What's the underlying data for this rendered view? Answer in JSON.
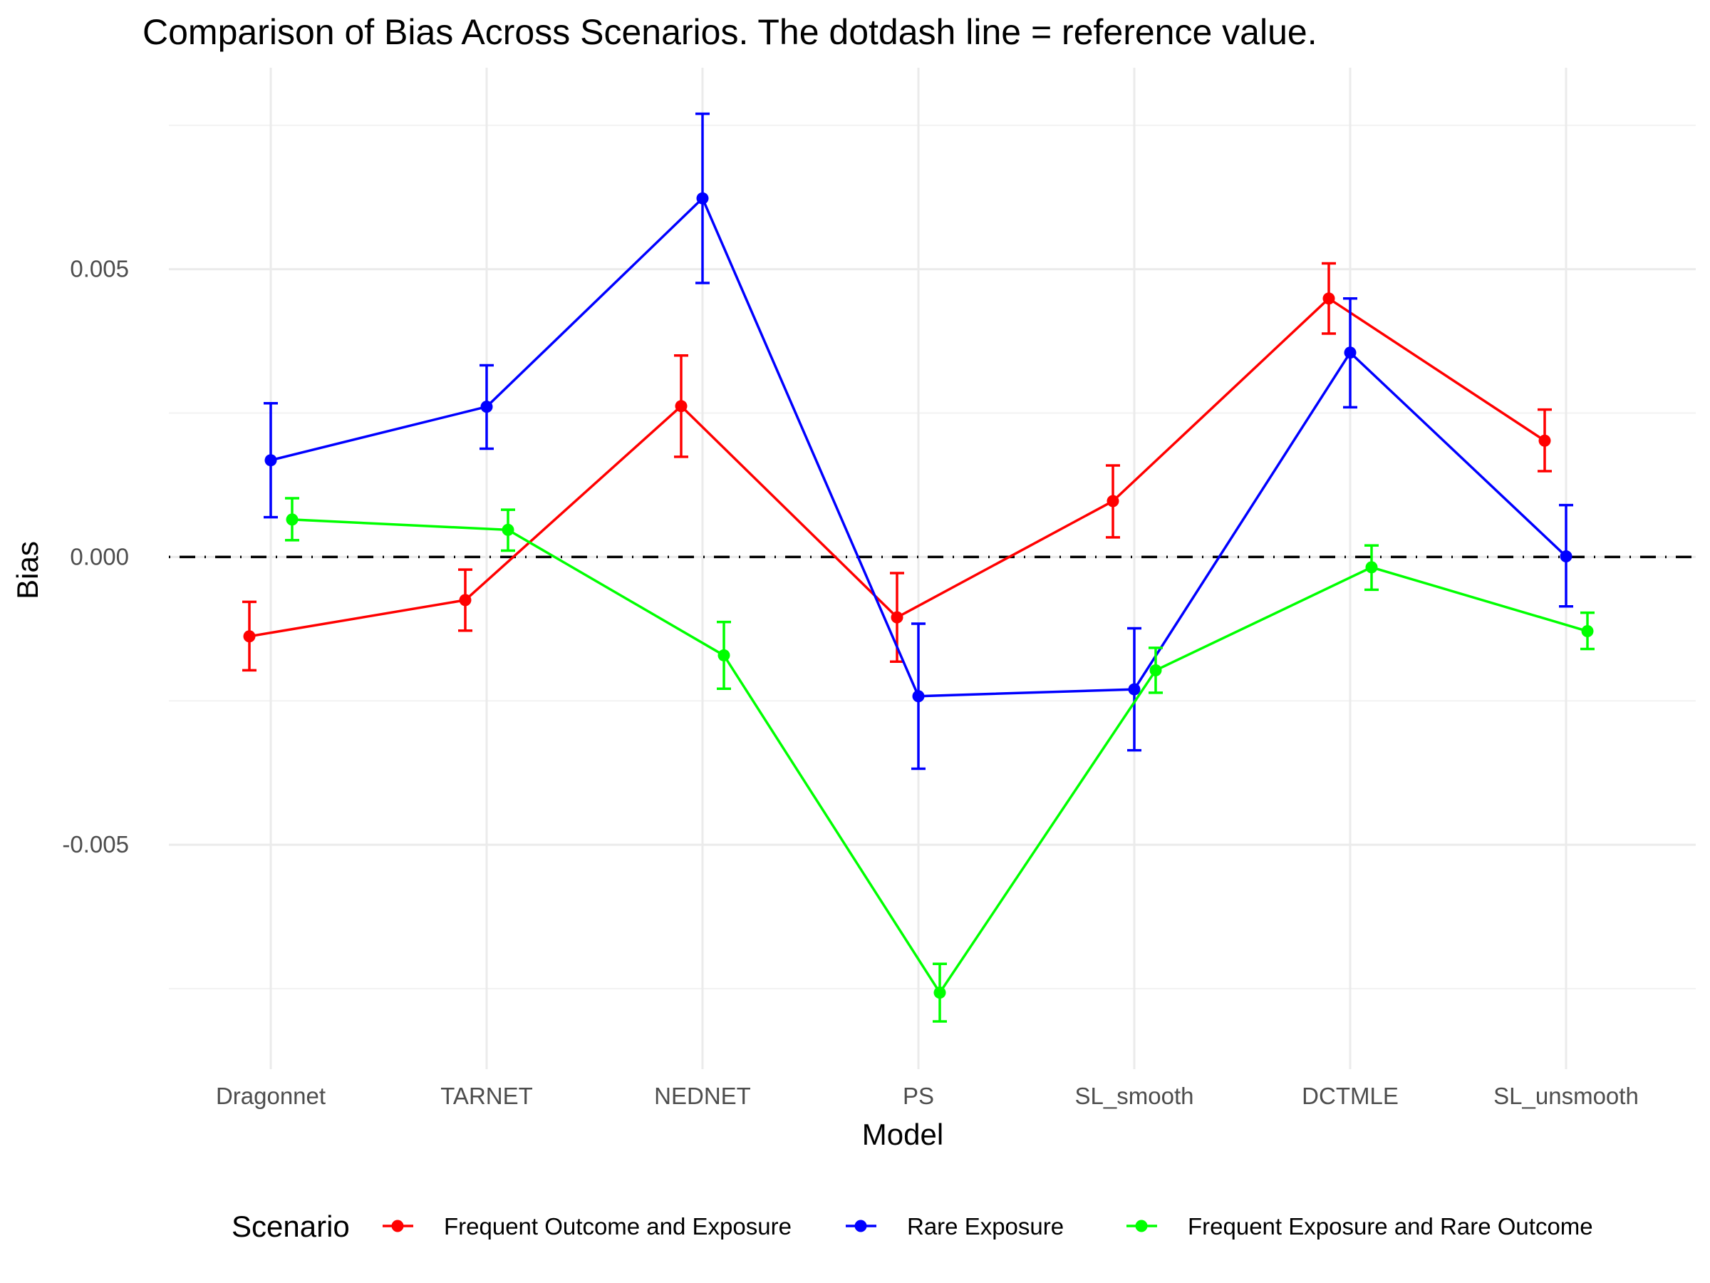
{
  "chart_data": {
    "type": "line",
    "title": "Comparison of Bias Across Scenarios. The dotdash line = reference value.",
    "xlabel": "Model",
    "ylabel": "Bias",
    "categories": [
      "Dragonnet",
      "TARNET",
      "NEDNET",
      "PS",
      "SL_smooth",
      "DCTMLE",
      "SL_unsmooth"
    ],
    "ylim": [
      -0.0089,
      0.0085
    ],
    "y_ticks": [
      -0.005,
      0.0,
      0.005
    ],
    "y_tick_labels": [
      "-0.005",
      "0.000",
      "0.005"
    ],
    "reference_line": {
      "value": 0.0,
      "style": "dotdash"
    },
    "grid": true,
    "legend": {
      "title": "Scenario",
      "position": "bottom"
    },
    "series": [
      {
        "name": "Frequent Outcome and Exposure",
        "color": "#ff0000",
        "values": [
          -0.00138,
          -0.00075,
          0.00262,
          -0.00105,
          0.00097,
          0.00449,
          0.00202
        ],
        "lower": [
          -0.00197,
          -0.00128,
          0.00174,
          -0.00182,
          0.00034,
          0.00388,
          0.00149
        ],
        "upper": [
          -0.00078,
          -0.00022,
          0.0035,
          -0.00028,
          0.00159,
          0.0051,
          0.00256
        ]
      },
      {
        "name": "Rare Exposure",
        "color": "#0000ff",
        "values": [
          0.00168,
          0.00261,
          0.00623,
          -0.00242,
          -0.0023,
          0.00355,
          1e-05
        ],
        "lower": [
          0.00069,
          0.00188,
          0.00476,
          -0.00368,
          -0.00336,
          0.0026,
          -0.00086
        ],
        "upper": [
          0.00267,
          0.00333,
          0.0077,
          -0.00116,
          -0.00124,
          0.00449,
          0.0009
        ]
      },
      {
        "name": "Frequent Exposure and Rare Outcome",
        "color": "#00ff00",
        "values": [
          0.00065,
          0.00047,
          -0.00171,
          -0.00757,
          -0.00197,
          -0.00018,
          -0.00129
        ],
        "lower": [
          0.00029,
          0.00011,
          -0.00229,
          -0.00807,
          -0.00236,
          -0.00057,
          -0.0016
        ],
        "upper": [
          0.00102,
          0.00082,
          -0.00113,
          -0.00707,
          -0.00158,
          0.0002,
          -0.00097
        ]
      }
    ]
  }
}
